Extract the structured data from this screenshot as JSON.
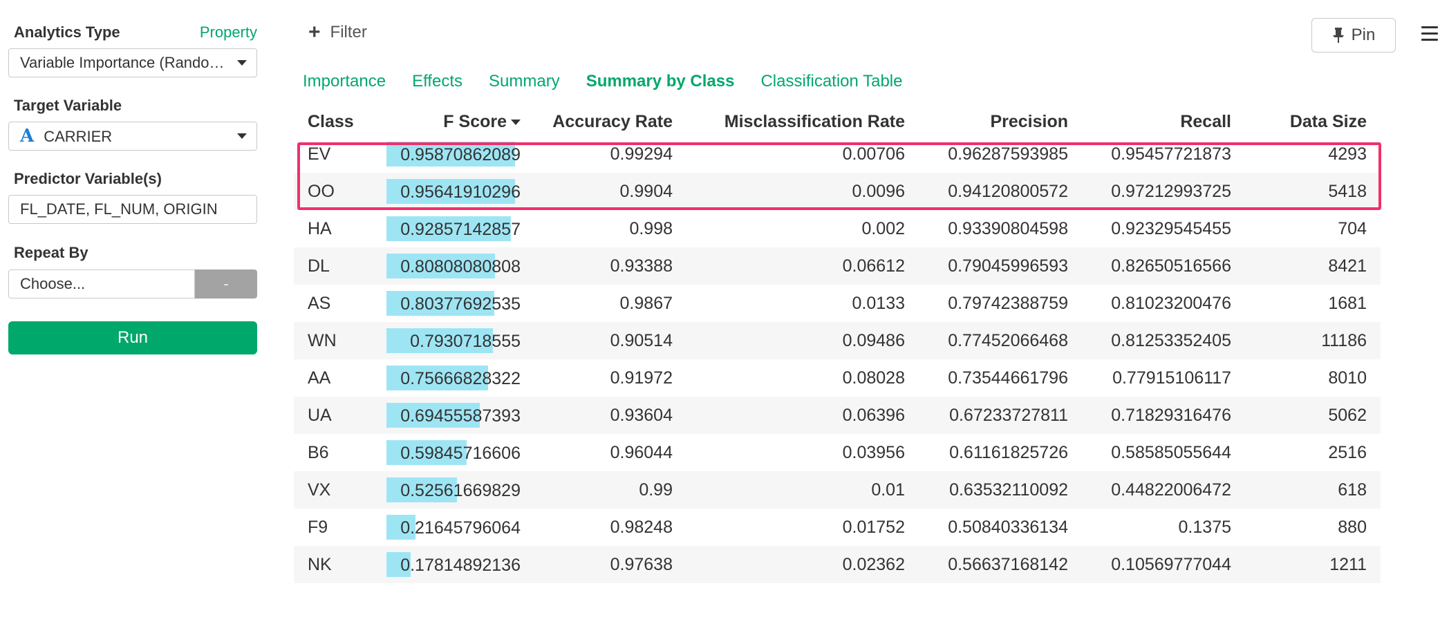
{
  "sidebar": {
    "analytics_type_label": "Analytics Type",
    "property_link": "Property",
    "analytics_type_value": "Variable Importance (Random Forest)",
    "target_variable_label": "Target Variable",
    "target_type_icon": "A",
    "target_variable_value": "CARRIER",
    "predictor_label": "Predictor Variable(s)",
    "predictor_value": "FL_DATE, FL_NUM, ORIGIN",
    "repeat_by_label": "Repeat By",
    "repeat_by_placeholder": "Choose...",
    "repeat_by_button": "-",
    "run_button": "Run"
  },
  "toolbar": {
    "filter_label": "Filter",
    "pin_label": "Pin"
  },
  "tabs": [
    {
      "label": "Importance",
      "active": false
    },
    {
      "label": "Effects",
      "active": false
    },
    {
      "label": "Summary",
      "active": false
    },
    {
      "label": "Summary by Class",
      "active": true
    },
    {
      "label": "Classification Table",
      "active": false
    }
  ],
  "table": {
    "headers": [
      "Class",
      "F Score",
      "Accuracy Rate",
      "Misclassification Rate",
      "Precision",
      "Recall",
      "Data Size"
    ],
    "sorted_column": "F Score",
    "rows": [
      {
        "class": "EV",
        "f_score": "0.95870862089",
        "accuracy": "0.99294",
        "misclass": "0.00706",
        "precision": "0.96287593985",
        "recall": "0.95457721873",
        "size": "4293",
        "f_value": 0.9587
      },
      {
        "class": "OO",
        "f_score": "0.95641910296",
        "accuracy": "0.9904",
        "misclass": "0.0096",
        "precision": "0.94120800572",
        "recall": "0.97212993725",
        "size": "5418",
        "f_value": 0.9564
      },
      {
        "class": "HA",
        "f_score": "0.92857142857",
        "accuracy": "0.998",
        "misclass": "0.002",
        "precision": "0.93390804598",
        "recall": "0.92329545455",
        "size": "704",
        "f_value": 0.9286
      },
      {
        "class": "DL",
        "f_score": "0.80808080808",
        "accuracy": "0.93388",
        "misclass": "0.06612",
        "precision": "0.79045996593",
        "recall": "0.82650516566",
        "size": "8421",
        "f_value": 0.8081
      },
      {
        "class": "AS",
        "f_score": "0.80377692535",
        "accuracy": "0.9867",
        "misclass": "0.0133",
        "precision": "0.79742388759",
        "recall": "0.81023200476",
        "size": "1681",
        "f_value": 0.8038
      },
      {
        "class": "WN",
        "f_score": "0.7930718555",
        "accuracy": "0.90514",
        "misclass": "0.09486",
        "precision": "0.77452066468",
        "recall": "0.81253352405",
        "size": "11186",
        "f_value": 0.7931
      },
      {
        "class": "AA",
        "f_score": "0.75666828322",
        "accuracy": "0.91972",
        "misclass": "0.08028",
        "precision": "0.73544661796",
        "recall": "0.77915106117",
        "size": "8010",
        "f_value": 0.7567
      },
      {
        "class": "UA",
        "f_score": "0.69455587393",
        "accuracy": "0.93604",
        "misclass": "0.06396",
        "precision": "0.67233727811",
        "recall": "0.71829316476",
        "size": "5062",
        "f_value": 0.6946
      },
      {
        "class": "B6",
        "f_score": "0.59845716606",
        "accuracy": "0.96044",
        "misclass": "0.03956",
        "precision": "0.61161825726",
        "recall": "0.58585055644",
        "size": "2516",
        "f_value": 0.5985
      },
      {
        "class": "VX",
        "f_score": "0.52561669829",
        "accuracy": "0.99",
        "misclass": "0.01",
        "precision": "0.63532110092",
        "recall": "0.44822006472",
        "size": "618",
        "f_value": 0.5256
      },
      {
        "class": "F9",
        "f_score": "0.21645796064",
        "accuracy": "0.98248",
        "misclass": "0.01752",
        "precision": "0.50840336134",
        "recall": "0.1375",
        "size": "880",
        "f_value": 0.2165
      },
      {
        "class": "NK",
        "f_score": "0.17814892136",
        "accuracy": "0.97638",
        "misclass": "0.02362",
        "precision": "0.56637168142",
        "recall": "0.10569777044",
        "size": "1211",
        "f_value": 0.1781
      }
    ]
  },
  "colors": {
    "accent": "#00a86b",
    "bar": "#9ee5f4",
    "highlight": "#f0306b"
  }
}
